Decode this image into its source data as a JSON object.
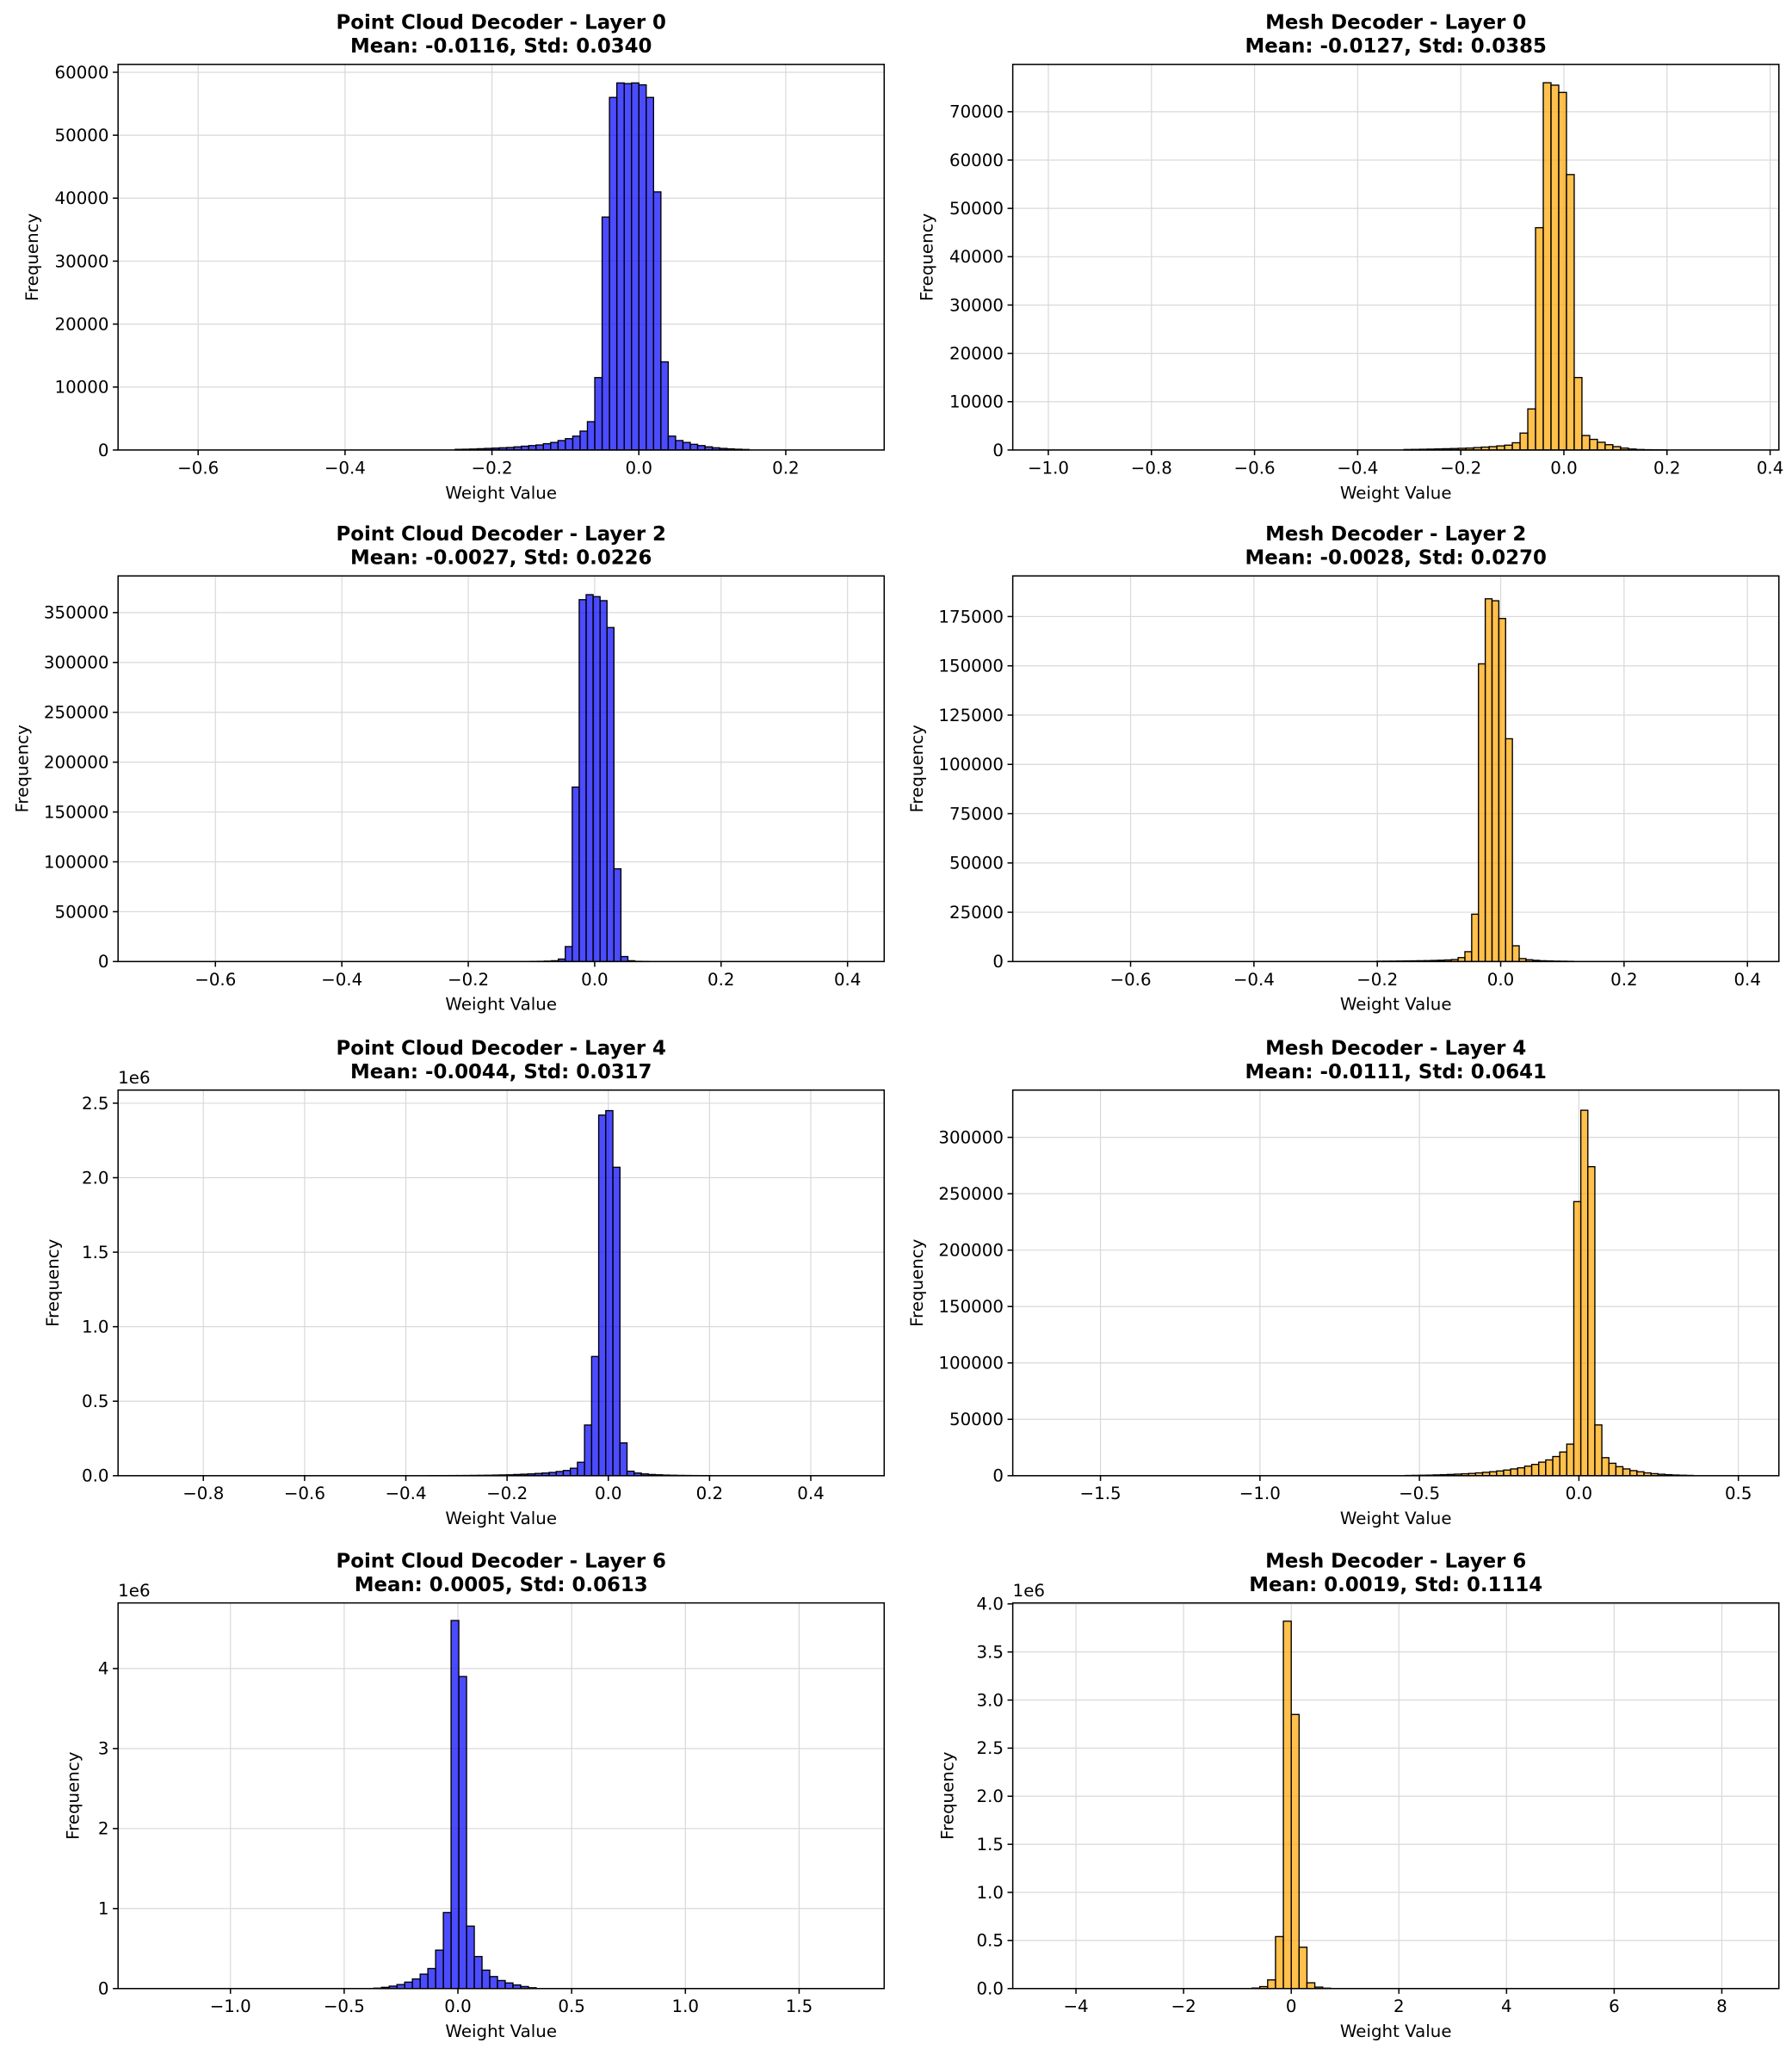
{
  "chart_data": [
    {
      "type": "histogram",
      "title": "Point Cloud Decoder - Layer 0",
      "subtitle": "Mean: -0.0116, Std: 0.0340",
      "xlabel": "Weight Value",
      "ylabel": "Frequency",
      "color": "#0000ff",
      "alpha": 0.7,
      "edgecolor": "#000000",
      "grid": true,
      "bins": [
        -0.25,
        -0.24,
        -0.23,
        -0.22,
        -0.21,
        -0.2,
        -0.19,
        -0.18,
        -0.17,
        -0.16,
        -0.15,
        -0.14,
        -0.13,
        -0.12,
        -0.11,
        -0.1,
        -0.09,
        -0.08,
        -0.07,
        -0.06,
        -0.05,
        -0.04,
        -0.03,
        -0.02,
        -0.01,
        0,
        0.01,
        0.02,
        0.03,
        0.04,
        0.05,
        0.06,
        0.07,
        0.08,
        0.09,
        0.1,
        0.11,
        0.12,
        0.13,
        0.14,
        0.15
      ],
      "values": [
        100,
        120,
        150,
        200,
        250,
        300,
        350,
        400,
        500,
        600,
        700,
        800,
        1000,
        1200,
        1500,
        1800,
        2200,
        3000,
        4500,
        11500,
        37000,
        56000,
        58300,
        58200,
        58300,
        58000,
        56000,
        41000,
        14000,
        2200,
        1500,
        1200,
        900,
        700,
        500,
        350,
        250,
        180,
        120,
        80
      ],
      "xlim": [
        -0.709,
        0.334
      ],
      "ylim": [
        0,
        61250
      ],
      "xticks": [
        {
          "value": -0.6,
          "label": "−0.6"
        },
        {
          "value": -0.4,
          "label": "−0.4"
        },
        {
          "value": -0.2,
          "label": "−0.2"
        },
        {
          "value": 0,
          "label": "0.0"
        },
        0.2
      ],
      "yticks": [
        0,
        10000,
        20000,
        30000,
        40000,
        50000,
        60000
      ]
    },
    {
      "type": "histogram",
      "title": "Mesh Decoder - Layer 0",
      "subtitle": "Mean: -0.0127, Std: 0.0385",
      "xlabel": "Weight Value",
      "ylabel": "Frequency",
      "color": "#ffa500",
      "alpha": 0.7,
      "edgecolor": "#000000",
      "grid": true,
      "bins": [
        -0.31,
        -0.295,
        -0.28,
        -0.265,
        -0.25,
        -0.235,
        -0.22,
        -0.205,
        -0.19,
        -0.175,
        -0.16,
        -0.145,
        -0.13,
        -0.115,
        -0.1,
        -0.085,
        -0.07,
        -0.055,
        -0.04,
        -0.025,
        -0.01,
        0.005,
        0.02,
        0.035,
        0.05,
        0.065,
        0.08,
        0.095,
        0.11,
        0.125,
        0.14,
        0.155,
        0.17,
        0.185,
        0.2
      ],
      "values": [
        100,
        120,
        150,
        180,
        220,
        260,
        300,
        350,
        400,
        500,
        600,
        700,
        850,
        1000,
        1500,
        3500,
        8500,
        46000,
        76000,
        75500,
        74000,
        57000,
        15000,
        3000,
        2200,
        1600,
        1100,
        700,
        400,
        200,
        100,
        60,
        40,
        20
      ],
      "xlim": [
        -1.069,
        0.417
      ],
      "ylim": [
        0,
        79800
      ],
      "xticks": [
        {
          "value": -1.0,
          "label": "−1.0"
        },
        {
          "value": -0.8,
          "label": "−0.8"
        },
        {
          "value": -0.6,
          "label": "−0.6"
        },
        {
          "value": -0.4,
          "label": "−0.4"
        },
        {
          "value": -0.2,
          "label": "−0.2"
        },
        {
          "value": 0,
          "label": "0.0"
        },
        0.2,
        0.4
      ],
      "yticks": [
        0,
        10000,
        20000,
        30000,
        40000,
        50000,
        60000,
        70000
      ]
    },
    {
      "type": "histogram",
      "title": "Point Cloud Decoder - Layer 2",
      "subtitle": "Mean: -0.0027, Std: 0.0226",
      "xlabel": "Weight Value",
      "ylabel": "Frequency",
      "color": "#0000ff",
      "alpha": 0.7,
      "edgecolor": "#000000",
      "grid": true,
      "bins": [
        -0.1015,
        -0.0905,
        -0.0795,
        -0.0685,
        -0.0575,
        -0.0465,
        -0.0355,
        -0.0245,
        -0.0135,
        -0.0025,
        0.0085,
        0.0195,
        0.0305,
        0.0415,
        0.0525,
        0.0635,
        0.0745,
        0.0855
      ],
      "values": [
        100,
        200,
        400,
        800,
        2500,
        15000,
        175000,
        363000,
        368000,
        366000,
        362000,
        335000,
        93000,
        5000,
        800,
        200,
        100
      ],
      "xlim": [
        -0.754,
        0.458
      ],
      "ylim": [
        0,
        386800
      ],
      "xticks": [
        {
          "value": -0.6,
          "label": "−0.6"
        },
        {
          "value": -0.4,
          "label": "−0.4"
        },
        {
          "value": -0.2,
          "label": "−0.2"
        },
        {
          "value": 0,
          "label": "0.0"
        },
        0.2,
        0.4
      ],
      "yticks": [
        0,
        50000,
        100000,
        150000,
        200000,
        250000,
        300000,
        350000
      ]
    },
    {
      "type": "histogram",
      "title": "Mesh Decoder - Layer 2",
      "subtitle": "Mean: -0.0028, Std: 0.0270",
      "xlabel": "Weight Value",
      "ylabel": "Frequency",
      "color": "#ffa500",
      "alpha": 0.7,
      "edgecolor": "#000000",
      "grid": true,
      "bins": [
        -0.201,
        -0.19,
        -0.179,
        -0.168,
        -0.157,
        -0.146,
        -0.135,
        -0.124,
        -0.113,
        -0.102,
        -0.091,
        -0.08,
        -0.069,
        -0.058,
        -0.047,
        -0.036,
        -0.025,
        -0.014,
        -0.003,
        0.008,
        0.019,
        0.03,
        0.041,
        0.052,
        0.063,
        0.074,
        0.085,
        0.096,
        0.107,
        0.118
      ],
      "values": [
        150,
        180,
        200,
        250,
        300,
        350,
        400,
        450,
        550,
        650,
        800,
        1000,
        2000,
        5000,
        24000,
        151000,
        184000,
        183000,
        174000,
        113000,
        8000,
        1500,
        900,
        600,
        400,
        300,
        200,
        150,
        100
      ],
      "xlim": [
        -0.791,
        0.451
      ],
      "ylim": [
        0,
        195600
      ],
      "xticks": [
        {
          "value": -0.6,
          "label": "−0.6"
        },
        {
          "value": -0.4,
          "label": "−0.4"
        },
        {
          "value": -0.2,
          "label": "−0.2"
        },
        {
          "value": 0,
          "label": "0.0"
        },
        0.2,
        0.4
      ],
      "yticks": [
        0,
        25000,
        50000,
        75000,
        100000,
        125000,
        150000,
        175000
      ]
    },
    {
      "type": "histogram",
      "title": "Point Cloud Decoder - Layer 4",
      "subtitle": "Mean: -0.0044, Std: 0.0317",
      "xlabel": "Weight Value",
      "ylabel": "Frequency",
      "y_offset_label": "1e6",
      "color": "#0000ff",
      "alpha": 0.7,
      "edgecolor": "#000000",
      "grid": true,
      "bins": [
        -0.355,
        -0.341,
        -0.327,
        -0.313,
        -0.299,
        -0.285,
        -0.271,
        -0.257,
        -0.243,
        -0.229,
        -0.215,
        -0.201,
        -0.187,
        -0.173,
        -0.159,
        -0.145,
        -0.131,
        -0.117,
        -0.103,
        -0.089,
        -0.075,
        -0.061,
        -0.047,
        -0.033,
        -0.019,
        -0.005,
        0.009,
        0.023,
        0.037,
        0.051,
        0.065,
        0.079,
        0.093,
        0.107,
        0.121,
        0.135,
        0.149,
        0.163,
        0.177,
        0.191,
        0.205
      ],
      "values": [
        400,
        600,
        800,
        1000,
        1200,
        1500,
        2000,
        2500,
        3000,
        4000,
        5000,
        6000,
        8000,
        10000,
        12000,
        15000,
        18000,
        22000,
        28000,
        35000,
        50000,
        90000,
        340000,
        800000,
        2420000,
        2450000,
        2070000,
        220000,
        30000,
        18000,
        12000,
        8000,
        6000,
        4000,
        3000,
        2000,
        1500,
        1000,
        600,
        300
      ],
      "xlim": [
        -0.9685,
        0.545
      ],
      "ylim": [
        0,
        2588000
      ],
      "xticks": [
        {
          "value": -0.8,
          "label": "−0.8"
        },
        {
          "value": -0.6,
          "label": "−0.6"
        },
        {
          "value": -0.4,
          "label": "−0.4"
        },
        {
          "value": -0.2,
          "label": "−0.2"
        },
        {
          "value": 0,
          "label": "0.0"
        },
        0.2,
        0.4
      ],
      "yticks": [
        {
          "value": 0,
          "label": "0.0"
        },
        {
          "value": 500000,
          "label": "0.5"
        },
        {
          "value": 1000000,
          "label": "1.0"
        },
        {
          "value": 1500000,
          "label": "1.5"
        },
        {
          "value": 2000000,
          "label": "2.0"
        },
        {
          "value": 2500000,
          "label": "2.5"
        }
      ]
    },
    {
      "type": "histogram",
      "title": "Mesh Decoder - Layer 4",
      "subtitle": "Mean: -0.0111, Std: 0.0641",
      "xlabel": "Weight Value",
      "ylabel": "Frequency",
      "color": "#ffa500",
      "alpha": 0.7,
      "edgecolor": "#000000",
      "grid": true,
      "bins": [
        -0.544,
        -0.522,
        -0.5,
        -0.478,
        -0.456,
        -0.434,
        -0.412,
        -0.39,
        -0.368,
        -0.346,
        -0.324,
        -0.302,
        -0.28,
        -0.258,
        -0.236,
        -0.214,
        -0.192,
        -0.17,
        -0.148,
        -0.126,
        -0.104,
        -0.082,
        -0.06,
        -0.038,
        -0.016,
        0.006,
        0.028,
        0.05,
        0.072,
        0.094,
        0.116,
        0.138,
        0.16,
        0.182,
        0.204,
        0.226,
        0.248,
        0.27,
        0.292,
        0.314,
        0.336,
        0.358
      ],
      "values": [
        200,
        300,
        400,
        500,
        700,
        900,
        1100,
        1400,
        1700,
        2000,
        2500,
        3000,
        3500,
        4200,
        5000,
        6000,
        7000,
        8500,
        10000,
        12000,
        14000,
        17000,
        21000,
        28000,
        243000,
        324000,
        274000,
        45000,
        16000,
        11000,
        8000,
        6000,
        4500,
        3500,
        2500,
        1800,
        1300,
        900,
        600,
        400,
        250
      ],
      "xlim": [
        -1.775,
        0.627
      ],
      "ylim": [
        0,
        341900
      ],
      "xticks": [
        {
          "value": -1.5,
          "label": "−1.5"
        },
        {
          "value": -1.0,
          "label": "−1.0"
        },
        {
          "value": -0.5,
          "label": "−0.5"
        },
        {
          "value": 0,
          "label": "0.0"
        },
        0.5
      ],
      "yticks": [
        0,
        50000,
        100000,
        150000,
        200000,
        250000,
        300000
      ]
    },
    {
      "type": "histogram",
      "title": "Point Cloud Decoder - Layer 6",
      "subtitle": "Mean: 0.0005, Std: 0.0613",
      "xlabel": "Weight Value",
      "ylabel": "Frequency",
      "y_offset_label": "1e6",
      "color": "#0000ff",
      "alpha": 0.7,
      "edgecolor": "#000000",
      "grid": true,
      "bins": [
        -0.37,
        -0.336,
        -0.302,
        -0.268,
        -0.234,
        -0.2,
        -0.166,
        -0.132,
        -0.098,
        -0.064,
        -0.03,
        0.004,
        0.038,
        0.072,
        0.106,
        0.14,
        0.174,
        0.208,
        0.242,
        0.276,
        0.31,
        0.344
      ],
      "values": [
        5000,
        15000,
        30000,
        50000,
        80000,
        120000,
        180000,
        250000,
        480000,
        950000,
        4600000,
        3900000,
        780000,
        400000,
        230000,
        150000,
        100000,
        70000,
        45000,
        25000,
        10000
      ],
      "xlim": [
        -1.494,
        1.874
      ],
      "ylim": [
        0,
        4820000
      ],
      "xticks": [
        {
          "value": -1.0,
          "label": "−1.0"
        },
        {
          "value": -0.5,
          "label": "−0.5"
        },
        {
          "value": 0,
          "label": "0.0"
        },
        0.5,
        {
          "value": 1.0,
          "label": "1.0"
        },
        1.5
      ],
      "yticks": [
        0,
        {
          "value": 1000000,
          "label": "1"
        },
        {
          "value": 2000000,
          "label": "2"
        },
        {
          "value": 3000000,
          "label": "3"
        },
        {
          "value": 4000000,
          "label": "4"
        }
      ]
    },
    {
      "type": "histogram",
      "title": "Mesh Decoder - Layer 6",
      "subtitle": "Mean: 0.0019, Std: 0.1114",
      "xlabel": "Weight Value",
      "ylabel": "Frequency",
      "y_offset_label": "1e6",
      "color": "#ffa500",
      "alpha": 0.7,
      "edgecolor": "#000000",
      "grid": true,
      "bins": [
        -0.73,
        -0.584,
        -0.438,
        -0.292,
        -0.146,
        0,
        0.146,
        0.292,
        0.438,
        0.584,
        0.73
      ],
      "values": [
        5000,
        20000,
        90000,
        540000,
        3820000,
        2850000,
        430000,
        60000,
        15000,
        4000
      ],
      "xlim": [
        -5.174,
        9.06
      ],
      "ylim": [
        0,
        4010000
      ],
      "xticks": [
        {
          "value": -4,
          "label": "−4"
        },
        {
          "value": -2,
          "label": "−2"
        },
        0,
        2,
        4,
        6,
        8
      ],
      "yticks": [
        {
          "value": 0,
          "label": "0.0"
        },
        {
          "value": 500000,
          "label": "0.5"
        },
        {
          "value": 1000000,
          "label": "1.0"
        },
        {
          "value": 1500000,
          "label": "1.5"
        },
        {
          "value": 2000000,
          "label": "2.0"
        },
        {
          "value": 2500000,
          "label": "2.5"
        },
        {
          "value": 3000000,
          "label": "3.0"
        },
        {
          "value": 3500000,
          "label": "3.5"
        },
        {
          "value": 4000000,
          "label": "4.0"
        }
      ]
    }
  ]
}
